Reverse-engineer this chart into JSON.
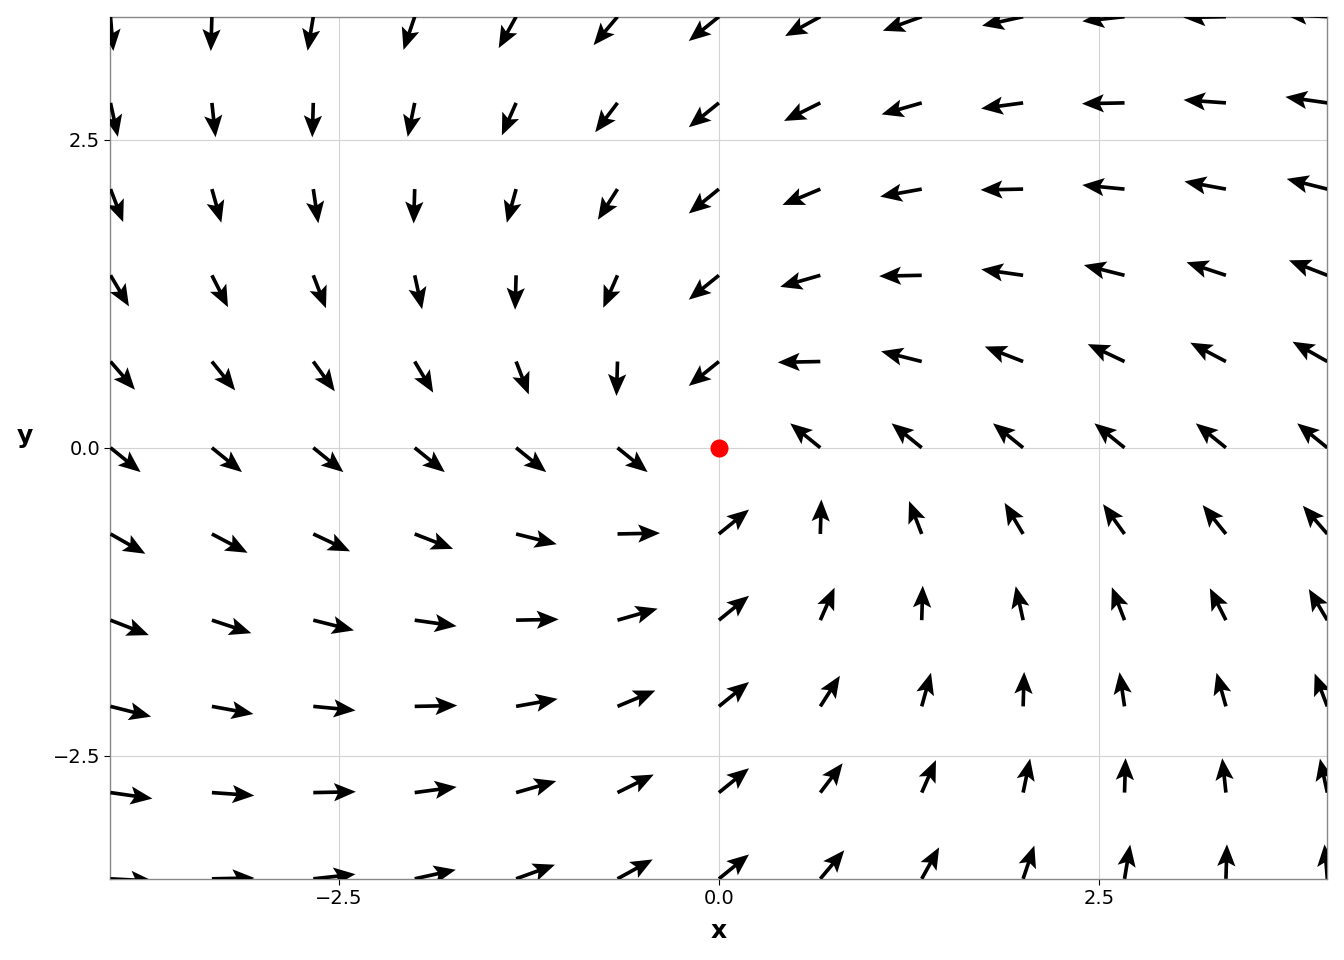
{
  "title": "",
  "xlabel": "x",
  "ylabel": "y",
  "xlim": [
    -4.0,
    4.0
  ],
  "ylim": [
    -3.5,
    3.5
  ],
  "grid_color": "#d3d3d3",
  "background_color": "#ffffff",
  "arrow_color": "#000000",
  "equilibrium_color": "#ff0000",
  "equilibrium_x": 0,
  "equilibrium_y": 0,
  "nx": 13,
  "ny": 11,
  "a": -1,
  "b": -1,
  "c": 1,
  "d": -1,
  "x_ticks": [
    -2.5,
    0.0,
    2.5
  ],
  "y_ticks": [
    -2.5,
    0.0,
    2.5
  ],
  "figsize": [
    13.44,
    9.6
  ],
  "dpi": 100
}
